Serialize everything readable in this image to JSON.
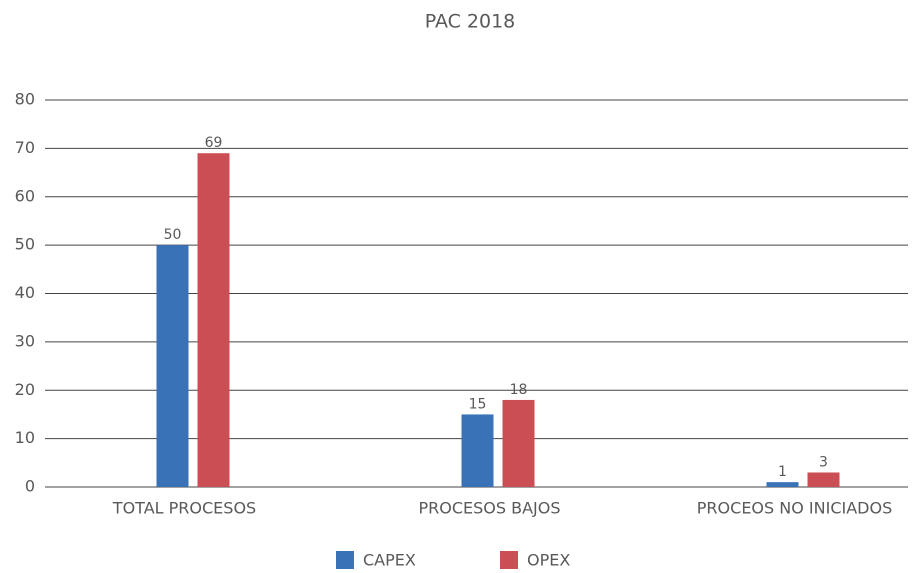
{
  "chart_data": {
    "type": "bar",
    "title": "PAC 2018",
    "categories": [
      "TOTAL PROCESOS",
      "PROCESOS BAJOS",
      "PROCEOS NO INICIADOS"
    ],
    "series": [
      {
        "name": "CAPEX",
        "color": "#3a72b8",
        "values": [
          50,
          15,
          1
        ]
      },
      {
        "name": "OPEX",
        "color": "#cc4e55",
        "values": [
          69,
          18,
          3
        ]
      }
    ],
    "ylim": [
      0,
      80
    ],
    "yticks": [
      0,
      10,
      20,
      30,
      40,
      50,
      60,
      70,
      80
    ],
    "grid": true,
    "legend": "bottom"
  }
}
